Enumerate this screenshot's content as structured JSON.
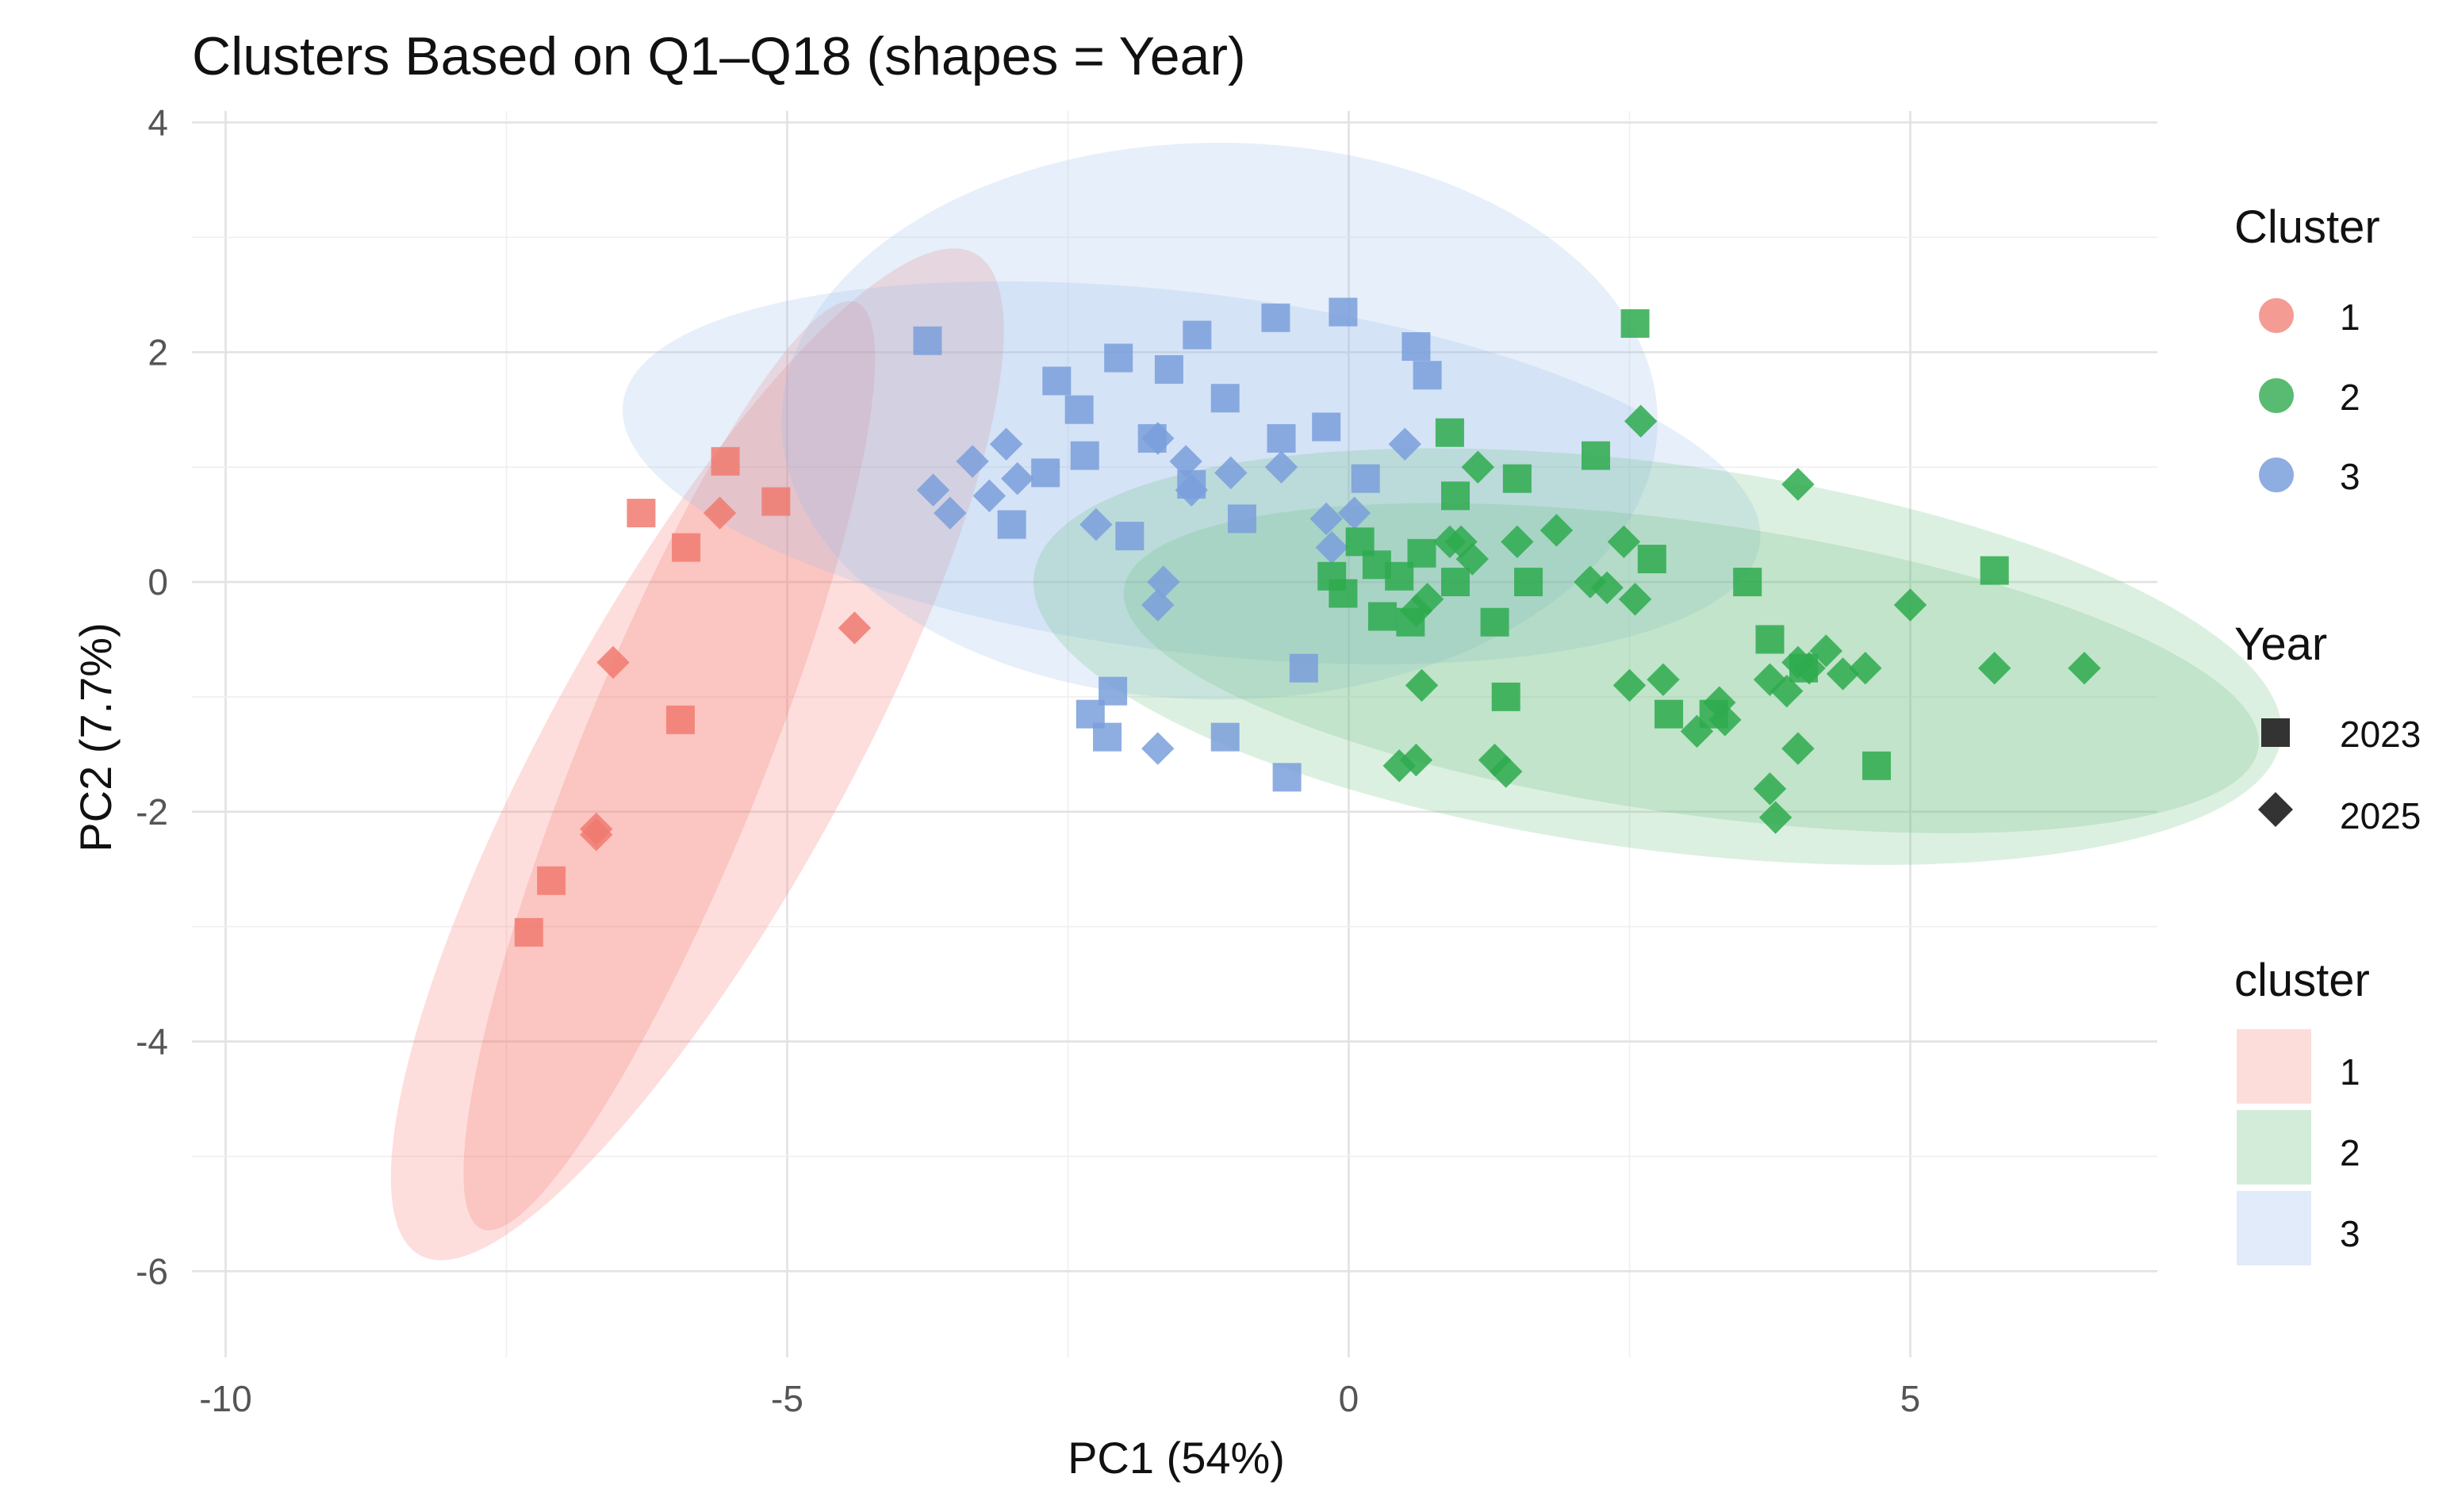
{
  "chart_data": {
    "type": "scatter",
    "title": "Clusters Based on Q1–Q18 (shapes = Year)",
    "xlabel": "PC1 (54%)",
    "ylabel": "PC2 (7.7%)",
    "xlim": [
      -10.3,
      7.2
    ],
    "ylim": [
      -6.75,
      4.1
    ],
    "xticks": [
      -10,
      -5,
      0,
      5
    ],
    "xtick_labels": [
      "-10",
      "-5",
      "0",
      "5"
    ],
    "yticks": [
      4,
      2,
      0,
      -2,
      -4,
      -6
    ],
    "ytick_labels": [
      "4",
      "2",
      "0",
      "-2",
      "-4",
      "-6"
    ],
    "grid": true,
    "colors": {
      "1": "#F07A70",
      "2": "#2EAA4E",
      "3": "#7A9FDB"
    },
    "legend": {
      "cluster_title": "Cluster",
      "cluster_entries": [
        "1",
        "2",
        "3"
      ],
      "year_title": "Year",
      "year_entries": [
        "2023",
        "2025"
      ],
      "ellipse_title": "cluster",
      "ellipse_entries": [
        "1",
        "2",
        "3"
      ]
    },
    "ellipses": [
      {
        "cluster": "1",
        "cx": -5.8,
        "cy": -1.5,
        "rx": 5.1,
        "ry": 1.32,
        "angle_deg": 61,
        "fill": "#F8766D"
      },
      {
        "cluster": "1",
        "cx": -6.05,
        "cy": -1.6,
        "rx": 4.45,
        "ry": 0.82,
        "angle_deg": 68,
        "fill": "#F8766D"
      },
      {
        "cluster": "3",
        "cx": -1.15,
        "cy": 1.4,
        "rx": 3.9,
        "ry": 2.48,
        "angle_deg": 0,
        "fill": "#9CBDEB"
      },
      {
        "cluster": "3",
        "cx": -1.4,
        "cy": 0.95,
        "rx": 5.1,
        "ry": 1.6,
        "angle_deg": -7,
        "fill": "#9CBDEB"
      },
      {
        "cluster": "2",
        "cx": 2.75,
        "cy": -0.65,
        "rx": 5.6,
        "ry": 1.72,
        "angle_deg": -7.5,
        "fill": "#6CC083"
      },
      {
        "cluster": "2",
        "cx": 3.05,
        "cy": -0.75,
        "rx": 5.1,
        "ry": 1.3,
        "angle_deg": -8,
        "fill": "#6CC083"
      }
    ],
    "series": [
      {
        "name": "Cluster 1 - 2023",
        "cluster": "1",
        "year": "2023",
        "shape": "square",
        "x": [
          -6.3,
          -5.9,
          -5.55,
          -5.1,
          -5.95,
          -7.1,
          -7.3
        ],
        "y": [
          0.6,
          0.3,
          1.05,
          0.7,
          -1.2,
          -2.6,
          -3.05
        ]
      },
      {
        "name": "Cluster 1 - 2025",
        "cluster": "1",
        "year": "2025",
        "shape": "diamond",
        "x": [
          -5.6,
          -4.4,
          -6.55,
          -6.7,
          -6.7
        ],
        "y": [
          0.6,
          -0.4,
          -0.7,
          -2.15,
          -2.2
        ]
      },
      {
        "name": "Cluster 3 - 2023",
        "cluster": "3",
        "year": "2023",
        "shape": "square",
        "x": [
          -3.75,
          -1.35,
          -0.65,
          -0.05,
          0.6,
          0.7,
          -2.6,
          -2.05,
          -1.6,
          -2.4,
          -1.1,
          -1.75,
          -2.7,
          -2.35,
          -1.4,
          -0.6,
          -0.2,
          0.15,
          -3.0,
          -1.95,
          -0.95,
          -2.1,
          -2.3,
          -2.15,
          -1.1,
          -0.4,
          -0.55
        ],
        "y": [
          2.1,
          2.15,
          2.3,
          2.35,
          2.05,
          1.8,
          1.75,
          1.95,
          1.85,
          1.5,
          1.6,
          1.25,
          0.95,
          1.1,
          0.85,
          1.25,
          1.35,
          0.9,
          0.5,
          0.4,
          0.55,
          -0.95,
          -1.15,
          -1.35,
          -1.35,
          -0.75,
          -1.7
        ]
      },
      {
        "name": "Cluster 3 - 2025",
        "cluster": "3",
        "year": "2025",
        "shape": "diamond",
        "x": [
          -3.7,
          -3.55,
          -3.35,
          -3.2,
          -3.05,
          -2.95,
          -1.7,
          -1.45,
          -1.4,
          -1.05,
          -0.6,
          -2.25,
          -1.65,
          -1.7,
          -1.7,
          0.5,
          -0.2,
          0.05,
          -0.15
        ],
        "y": [
          0.8,
          0.6,
          1.05,
          0.75,
          1.2,
          0.9,
          1.25,
          1.05,
          0.8,
          0.95,
          1.0,
          0.5,
          0.0,
          -0.2,
          -1.45,
          1.2,
          0.55,
          0.6,
          0.3
        ]
      },
      {
        "name": "Cluster 2 - 2023",
        "cluster": "2",
        "year": "2023",
        "shape": "square",
        "x": [
          2.55,
          2.2,
          0.9,
          1.5,
          0.95,
          0.65,
          0.1,
          0.45,
          0.25,
          0.95,
          1.3,
          1.6,
          2.7,
          3.55,
          3.75,
          4.05,
          4.7,
          5.75,
          1.4,
          2.85,
          3.25,
          0.55,
          -0.15,
          -0.05,
          0.3
        ],
        "y": [
          2.25,
          1.1,
          1.3,
          0.9,
          0.75,
          0.25,
          0.35,
          0.05,
          0.15,
          0.0,
          -0.35,
          0.0,
          0.2,
          0.0,
          -0.5,
          -0.75,
          -1.6,
          0.1,
          -1.0,
          -1.15,
          -1.15,
          -0.35,
          0.05,
          -0.1,
          -0.3
        ]
      },
      {
        "name": "Cluster 2 - 2025",
        "cluster": "2",
        "year": "2025",
        "shape": "diamond",
        "x": [
          2.6,
          4.0,
          1.15,
          1.5,
          1.85,
          0.9,
          1.0,
          1.1,
          2.45,
          2.15,
          2.3,
          2.55,
          2.5,
          2.8,
          3.1,
          3.3,
          3.35,
          3.75,
          3.9,
          4.0,
          4.1,
          4.25,
          4.4,
          4.6,
          5.0,
          5.75,
          6.55,
          0.6,
          0.45,
          1.3,
          1.4,
          4.0,
          3.75,
          3.8,
          0.65,
          0.6,
          0.7
        ],
        "y": [
          1.4,
          0.85,
          1.0,
          0.35,
          0.45,
          0.35,
          0.35,
          0.2,
          0.35,
          0.0,
          -0.05,
          -0.15,
          -0.9,
          -0.85,
          -1.3,
          -1.05,
          -1.2,
          -0.85,
          -0.95,
          -0.7,
          -0.75,
          -0.6,
          -0.8,
          -0.75,
          -0.2,
          -0.75,
          -0.75,
          -1.55,
          -1.6,
          -1.55,
          -1.65,
          -1.45,
          -1.8,
          -2.05,
          -0.9,
          -0.25,
          -0.15
        ]
      }
    ]
  }
}
